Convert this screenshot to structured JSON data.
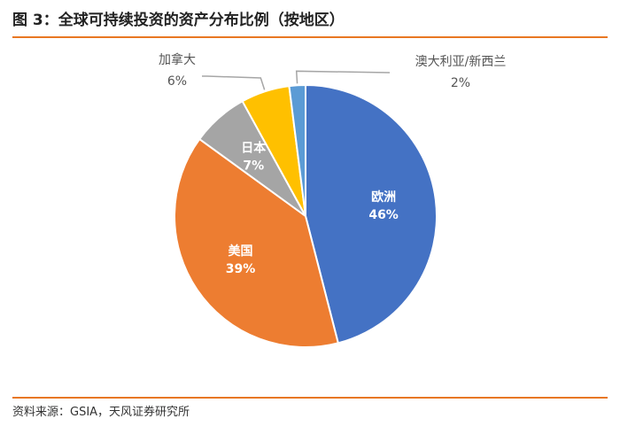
{
  "title": "图 3：全球可持续投资的资产分布比例（按地区）",
  "source": "资料来源：GSIA，天风证券研究所",
  "colors": {
    "accent_rule": "#E87722",
    "title": "#222222"
  },
  "chart_data": {
    "type": "pie",
    "title": "图 3：全球可持续投资的资产分布比例（按地区）",
    "start_angle_deg": 0,
    "direction": "clockwise",
    "slices": [
      {
        "label": "欧洲",
        "value": 46,
        "value_label": "46%",
        "color": "#4472C4",
        "label_position": "inside"
      },
      {
        "label": "美国",
        "value": 39,
        "value_label": "39%",
        "color": "#ED7D31",
        "label_position": "inside"
      },
      {
        "label": "日本",
        "value": 7,
        "value_label": "7%",
        "color": "#A5A5A5",
        "label_position": "inside"
      },
      {
        "label": "加拿大",
        "value": 6,
        "value_label": "6%",
        "color": "#FFC000",
        "label_position": "outside"
      },
      {
        "label": "澳大利亚/新西兰",
        "value": 2,
        "value_label": "2%",
        "color": "#5B9BD5",
        "label_position": "outside"
      }
    ],
    "legend": "none"
  }
}
